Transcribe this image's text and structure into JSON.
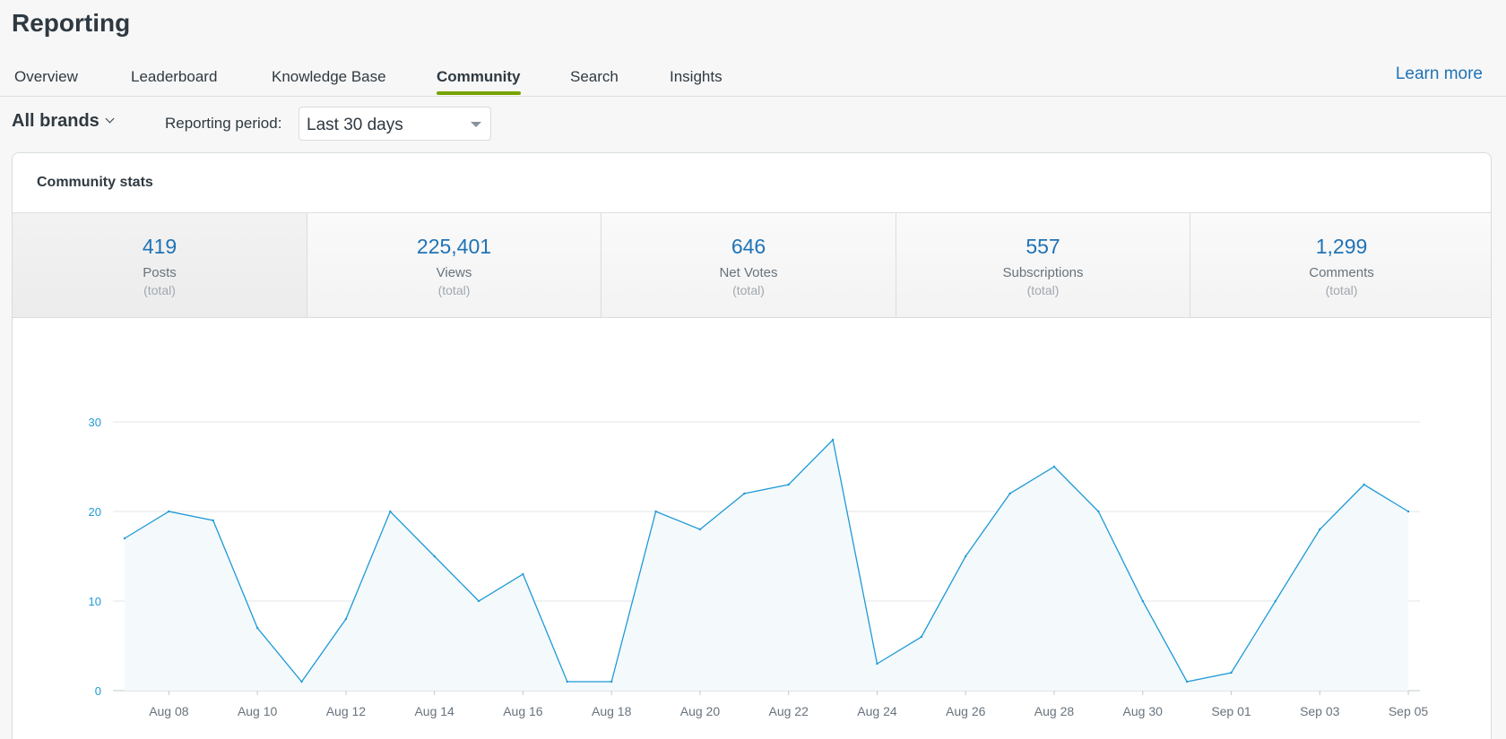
{
  "header": {
    "title": "Reporting"
  },
  "tabs": [
    {
      "label": "Overview",
      "active": false
    },
    {
      "label": "Leaderboard",
      "active": false
    },
    {
      "label": "Knowledge Base",
      "active": false
    },
    {
      "label": "Community",
      "active": true
    },
    {
      "label": "Search",
      "active": false
    },
    {
      "label": "Insights",
      "active": false
    }
  ],
  "learn_more": "Learn more",
  "filters": {
    "brands": "All brands",
    "period_label": "Reporting period:",
    "period_value": "Last 30 days"
  },
  "card": {
    "title": "Community stats",
    "stats": [
      {
        "value": "419",
        "label": "Posts",
        "sub": "(total)",
        "selected": true
      },
      {
        "value": "225,401",
        "label": "Views",
        "sub": "(total)",
        "selected": false
      },
      {
        "value": "646",
        "label": "Net Votes",
        "sub": "(total)",
        "selected": false
      },
      {
        "value": "557",
        "label": "Subscriptions",
        "sub": "(total)",
        "selected": false
      },
      {
        "value": "1,299",
        "label": "Comments",
        "sub": "(total)",
        "selected": false
      }
    ]
  },
  "colors": {
    "accent": "#1f73b7",
    "tab_underline": "#78a300",
    "line": "#1f9ad6",
    "fill": "#f4f9fc"
  },
  "chart_data": {
    "type": "area",
    "x": [
      "Aug 07",
      "Aug 08",
      "Aug 09",
      "Aug 10",
      "Aug 11",
      "Aug 12",
      "Aug 13",
      "Aug 14",
      "Aug 15",
      "Aug 16",
      "Aug 17",
      "Aug 18",
      "Aug 19",
      "Aug 20",
      "Aug 21",
      "Aug 22",
      "Aug 23",
      "Aug 24",
      "Aug 25",
      "Aug 26",
      "Aug 27",
      "Aug 28",
      "Aug 29",
      "Aug 30",
      "Aug 31",
      "Sep 01",
      "Sep 02",
      "Sep 03",
      "Sep 04",
      "Sep 05"
    ],
    "values": [
      17,
      20,
      19,
      7,
      1,
      8,
      20,
      15,
      10,
      13,
      1,
      1,
      20,
      18,
      22,
      23,
      28,
      3,
      6,
      15,
      22,
      25,
      20,
      10,
      1,
      2,
      10,
      18,
      23,
      20
    ],
    "xtick_labels": [
      "Aug 08",
      "Aug 10",
      "Aug 12",
      "Aug 14",
      "Aug 16",
      "Aug 18",
      "Aug 20",
      "Aug 22",
      "Aug 24",
      "Aug 26",
      "Aug 28",
      "Aug 30",
      "Sep 01",
      "Sep 03",
      "Sep 05"
    ],
    "yticks": [
      0,
      10,
      20,
      30
    ],
    "ylim": [
      0,
      30
    ],
    "grid": true,
    "title": "",
    "xlabel": "",
    "ylabel": ""
  }
}
